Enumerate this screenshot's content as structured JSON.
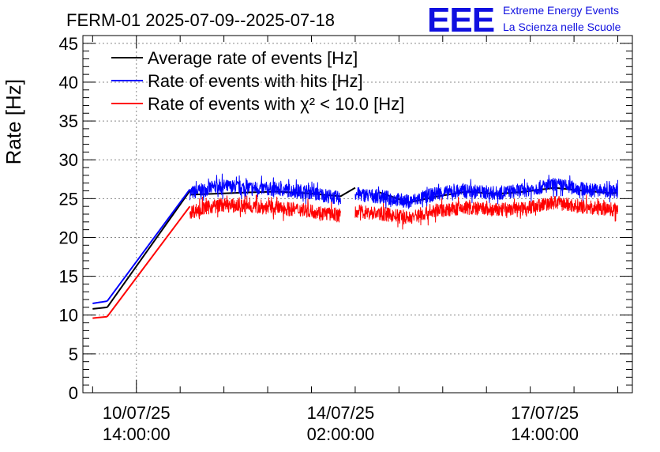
{
  "header": {
    "title": "FERM-01 2025-07-09--2025-07-18",
    "logo_text": "EEE",
    "brand_line1": "Extreme Energy Events",
    "brand_line2": "La Scienza nelle Scuole"
  },
  "chart_data": {
    "type": "line",
    "title": "FERM-01 2025-07-09--2025-07-18",
    "ylabel": "Rate [Hz]",
    "xlabel": "",
    "ylim": [
      0,
      46
    ],
    "yticks": [
      0,
      5,
      10,
      15,
      20,
      25,
      30,
      35,
      40,
      45
    ],
    "xlim": [
      "2025-07-09T16:00:00",
      "2025-07-19T02:00:00"
    ],
    "xticks": [
      {
        "at": "2025-07-10T14:00:00",
        "label": [
          "10/07/25",
          "14:00:00"
        ]
      },
      {
        "at": "2025-07-14T02:00:00",
        "label": [
          "14/07/25",
          "02:00:00"
        ]
      },
      {
        "at": "2025-07-17T14:00:00",
        "label": [
          "17/07/25",
          "14:00:00"
        ]
      }
    ],
    "grid": true,
    "legend_position": "top-left",
    "colors": {
      "average": "#000000",
      "hits": "#0000ff",
      "chi2": "#ff0000"
    },
    "legend": [
      {
        "key": "average",
        "text": "Average rate of events [Hz]"
      },
      {
        "key": "hits",
        "text": "Rate of events with hits [Hz]"
      },
      {
        "key": "chi2",
        "text": "Rate of events with χ² < 10.0 [Hz]"
      }
    ],
    "series": [
      {
        "name": "Average rate of events [Hz]",
        "key": "average",
        "segments": [
          {
            "x": [
              "2025-07-09T20:00:00",
              "2025-07-10T02:00:00"
            ],
            "y": [
              10.8,
              11.0
            ]
          },
          {
            "x": [
              "2025-07-10T02:00:00",
              "2025-07-11T12:00:00"
            ],
            "y": [
              11.0,
              26.0
            ]
          },
          {
            "x": [
              "2025-07-11T12:00:00",
              "2025-07-12T12:00:00",
              "2025-07-13T00:00:00",
              "2025-07-13T12:00:00",
              "2025-07-14T02:00:00",
              "2025-07-14T08:00:00"
            ],
            "y": [
              25.5,
              25.8,
              25.9,
              25.7,
              25.3,
              26.4
            ]
          },
          {
            "x": [
              "2025-07-14T18:00:00",
              "2025-07-15T06:00:00",
              "2025-07-15T18:00:00",
              "2025-07-16T06:00:00",
              "2025-07-16T18:00:00",
              "2025-07-17T06:00:00",
              "2025-07-17T18:00:00",
              "2025-07-18T06:00:00",
              "2025-07-18T18:00:00",
              "2025-07-18T20:00:00"
            ],
            "y": [
              25.8,
              24.5,
              25.3,
              25.9,
              25.6,
              25.9,
              26.4,
              26.0,
              25.7,
              25.8
            ]
          }
        ]
      },
      {
        "name": "Rate of events with hits [Hz]",
        "key": "hits",
        "segments": [
          {
            "x": [
              "2025-07-09T20:00:00",
              "2025-07-10T02:00:00"
            ],
            "y": [
              11.5,
              11.8
            ]
          },
          {
            "x": [
              "2025-07-10T02:00:00",
              "2025-07-11T12:00:00"
            ],
            "y": [
              11.8,
              26.2
            ]
          },
          {
            "x": [
              "2025-07-11T12:00:00",
              "2025-07-12T00:00:00",
              "2025-07-12T12:00:00",
              "2025-07-13T00:00:00",
              "2025-07-13T12:00:00",
              "2025-07-14T02:00:00"
            ],
            "y": [
              25.7,
              26.6,
              26.4,
              26.2,
              25.9,
              25.0
            ]
          },
          {
            "x": [
              "2025-07-14T08:00:00",
              "2025-07-14T20:00:00",
              "2025-07-15T06:00:00",
              "2025-07-15T18:00:00",
              "2025-07-16T06:00:00",
              "2025-07-16T18:00:00",
              "2025-07-17T06:00:00",
              "2025-07-17T18:00:00",
              "2025-07-18T06:00:00",
              "2025-07-18T20:00:00"
            ],
            "y": [
              25.6,
              25.2,
              24.6,
              25.7,
              26.0,
              25.7,
              26.1,
              26.8,
              26.2,
              25.9
            ]
          }
        ],
        "noise": 0.9
      },
      {
        "name": "Rate of events with χ² < 10.0 [Hz]",
        "key": "chi2",
        "segments": [
          {
            "x": [
              "2025-07-09T20:00:00",
              "2025-07-10T02:00:00"
            ],
            "y": [
              9.6,
              9.8
            ]
          },
          {
            "x": [
              "2025-07-10T02:00:00",
              "2025-07-11T12:00:00"
            ],
            "y": [
              9.8,
              24.0
            ]
          },
          {
            "x": [
              "2025-07-11T12:00:00",
              "2025-07-12T00:00:00",
              "2025-07-12T12:00:00",
              "2025-07-13T00:00:00",
              "2025-07-13T12:00:00",
              "2025-07-14T02:00:00"
            ],
            "y": [
              23.3,
              24.2,
              24.0,
              23.8,
              23.5,
              22.8
            ]
          },
          {
            "x": [
              "2025-07-14T08:00:00",
              "2025-07-14T20:00:00",
              "2025-07-15T06:00:00",
              "2025-07-15T18:00:00",
              "2025-07-16T06:00:00",
              "2025-07-16T18:00:00",
              "2025-07-17T06:00:00",
              "2025-07-17T18:00:00",
              "2025-07-18T06:00:00",
              "2025-07-18T20:00:00"
            ],
            "y": [
              23.4,
              23.0,
              22.5,
              23.5,
              23.8,
              23.5,
              23.8,
              24.5,
              23.9,
              23.6
            ]
          }
        ],
        "noise": 0.9
      }
    ]
  }
}
